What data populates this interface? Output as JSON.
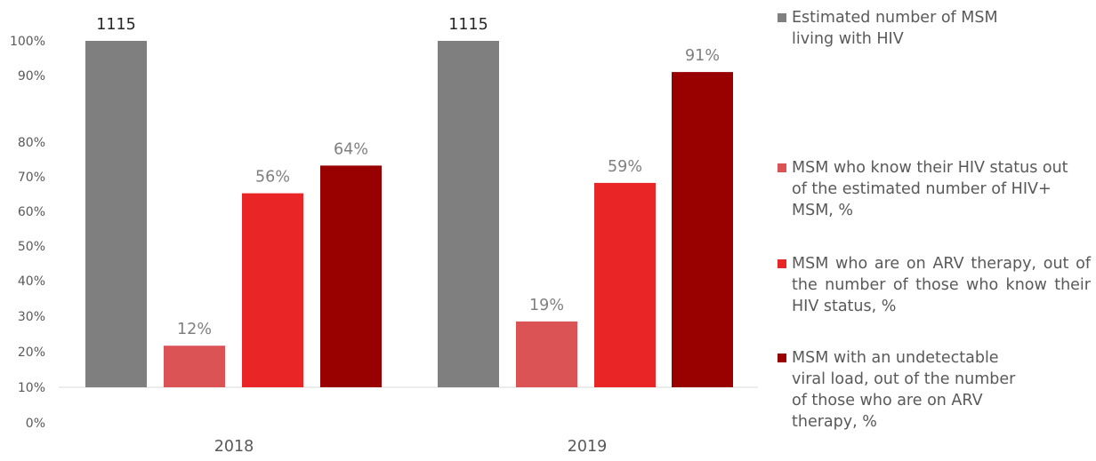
{
  "chart_data": {
    "type": "bar",
    "categories": [
      "2018",
      "2019"
    ],
    "y_tick_labels": [
      "0%",
      "10%",
      "20%",
      "30%",
      "40%",
      "50%",
      "60%",
      "70%",
      "80%",
      "90%",
      "100%"
    ],
    "grid": false,
    "legend_position": "right",
    "series": [
      {
        "name": "Estimated number of MSM living with HIV",
        "color": "#7f7f7f",
        "values": [
          100,
          100
        ],
        "labels": [
          "1115",
          "1115"
        ]
      },
      {
        "name": "MSM who know their HIV status out of the estimated number of HIV+ MSM, %",
        "color": "#dc5356",
        "values": [
          12,
          19
        ],
        "labels": [
          "12%",
          "19%"
        ]
      },
      {
        "name": "MSM who are on ARV therapy, out of the number of those who know their HIV status, %",
        "color": "#e92525",
        "values": [
          56,
          59
        ],
        "labels": [
          "56%",
          "59%"
        ]
      },
      {
        "name": "MSM with an undetectable viral load, out of the number of those who are on ARV therapy, %",
        "color": "#990000",
        "values": [
          64,
          91
        ],
        "labels": [
          "64%",
          "91%"
        ]
      }
    ]
  }
}
